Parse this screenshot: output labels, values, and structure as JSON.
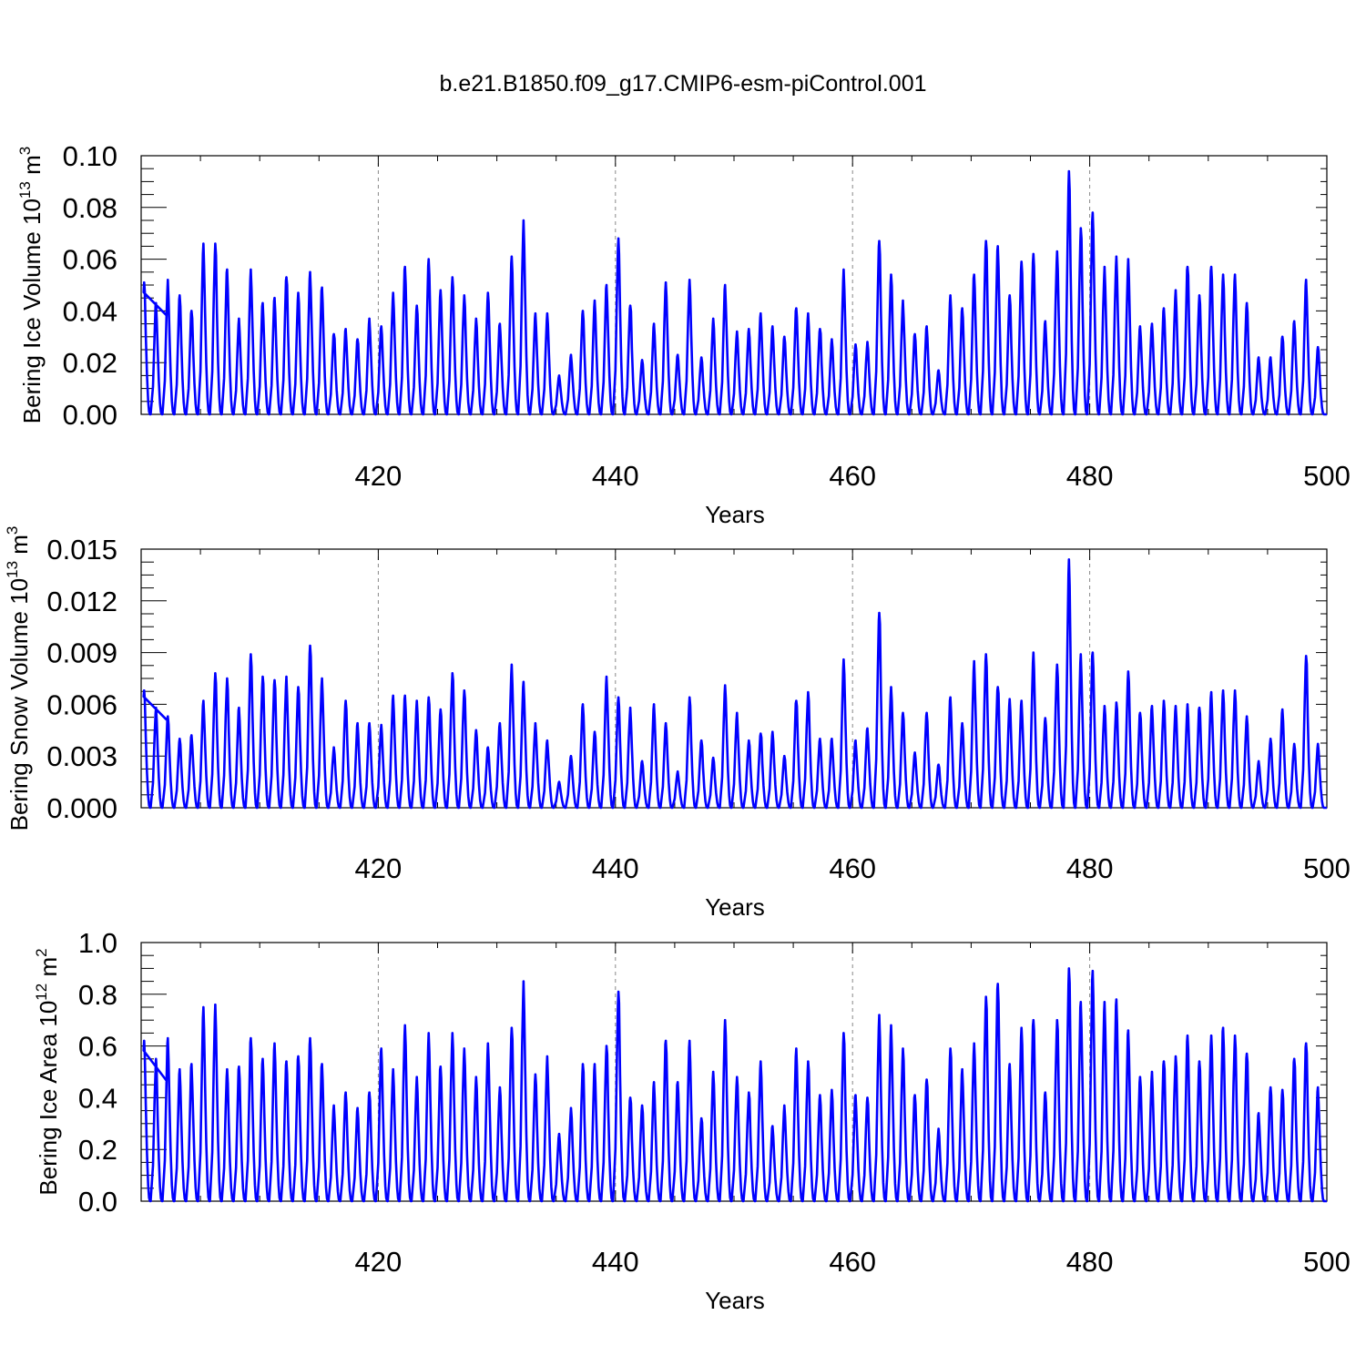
{
  "figure": {
    "title": "b.e21.B1850.f09_g17.CMIP6-esm-piControl.001",
    "line_color": "#0000ff"
  },
  "chart_data": [
    {
      "type": "line",
      "title": "b.e21.B1850.f09_g17.CMIP6-esm-piControl.001",
      "ylabel": {
        "main": "Bering Ice Volume 10",
        "exp": "13",
        "unit": " m",
        "unit_exp": "3"
      },
      "xlabel": "Years",
      "xlim": [
        400,
        500
      ],
      "ylim": [
        0,
        0.1
      ],
      "xticks": [
        420,
        440,
        460,
        480,
        500
      ],
      "yticks": [
        "0.00",
        "0.02",
        "0.04",
        "0.06",
        "0.08",
        "0.10"
      ],
      "ytick_values": [
        0,
        0.02,
        0.04,
        0.06,
        0.08,
        0.1
      ],
      "grid": "dashed vertical at x ticks",
      "series": [
        {
          "name": "Bering Ice Volume",
          "x": [
            400.25,
            401.25,
            402.25,
            403.25,
            404.25,
            405.25,
            406.25,
            407.25,
            408.25,
            409.25,
            410.25,
            411.25,
            412.25,
            413.25,
            414.25,
            415.25,
            416.25,
            417.25,
            418.25,
            419.25,
            420.25,
            421.25,
            422.25,
            423.25,
            424.25,
            425.25,
            426.25,
            427.25,
            428.25,
            429.25,
            430.25,
            431.25,
            432.25,
            433.25,
            434.25,
            435.25,
            436.25,
            437.25,
            438.25,
            439.25,
            440.25,
            441.25,
            442.25,
            443.25,
            444.25,
            445.25,
            446.25,
            447.25,
            448.25,
            449.25,
            450.25,
            451.25,
            452.25,
            453.25,
            454.25,
            455.25,
            456.25,
            457.25,
            458.25,
            459.25,
            460.25,
            461.25,
            462.25,
            463.25,
            464.25,
            465.25,
            466.25,
            467.25,
            468.25,
            469.25,
            470.25,
            471.25,
            472.25,
            473.25,
            474.25,
            475.25,
            476.25,
            477.25,
            478.25,
            479.25,
            480.25,
            481.25,
            482.25,
            483.25,
            484.25,
            485.25,
            486.25,
            487.25,
            488.25,
            489.25,
            490.25,
            491.25,
            492.25,
            493.25,
            494.25,
            495.25,
            496.25,
            497.25,
            498.25,
            499.25
          ],
          "values": [
            0.051,
            0.043,
            0.052,
            0.046,
            0.04,
            0.066,
            0.066,
            0.056,
            0.037,
            0.056,
            0.043,
            0.045,
            0.053,
            0.047,
            0.055,
            0.049,
            0.031,
            0.033,
            0.029,
            0.037,
            0.034,
            0.047,
            0.057,
            0.042,
            0.06,
            0.048,
            0.053,
            0.046,
            0.037,
            0.047,
            0.035,
            0.061,
            0.075,
            0.039,
            0.039,
            0.015,
            0.023,
            0.04,
            0.044,
            0.05,
            0.068,
            0.042,
            0.021,
            0.035,
            0.051,
            0.023,
            0.052,
            0.022,
            0.037,
            0.05,
            0.032,
            0.033,
            0.039,
            0.034,
            0.03,
            0.041,
            0.039,
            0.033,
            0.029,
            0.056,
            0.027,
            0.028,
            0.067,
            0.054,
            0.044,
            0.031,
            0.034,
            0.017,
            0.046,
            0.041,
            0.054,
            0.067,
            0.065,
            0.046,
            0.059,
            0.062,
            0.036,
            0.063,
            0.094,
            0.072,
            0.078,
            0.057,
            0.061,
            0.06,
            0.034,
            0.035,
            0.041,
            0.048,
            0.057,
            0.046,
            0.057,
            0.054,
            0.054,
            0.043,
            0.022,
            0.022,
            0.03,
            0.036,
            0.052,
            0.026
          ]
        }
      ]
    },
    {
      "type": "line",
      "ylabel": {
        "main": "Bering Snow Volume 10",
        "exp": "13",
        "unit": " m",
        "unit_exp": "3"
      },
      "xlabel": "Years",
      "xlim": [
        400,
        500
      ],
      "ylim": [
        0,
        0.015
      ],
      "xticks": [
        420,
        440,
        460,
        480,
        500
      ],
      "yticks": [
        "0.000",
        "0.003",
        "0.006",
        "0.009",
        "0.012",
        "0.015"
      ],
      "ytick_values": [
        0,
        0.003,
        0.006,
        0.009,
        0.012,
        0.015
      ],
      "grid": "dashed vertical at x ticks",
      "series": [
        {
          "name": "Bering Snow Volume",
          "x": [
            400.25,
            401.25,
            402.25,
            403.25,
            404.25,
            405.25,
            406.25,
            407.25,
            408.25,
            409.25,
            410.25,
            411.25,
            412.25,
            413.25,
            414.25,
            415.25,
            416.25,
            417.25,
            418.25,
            419.25,
            420.25,
            421.25,
            422.25,
            423.25,
            424.25,
            425.25,
            426.25,
            427.25,
            428.25,
            429.25,
            430.25,
            431.25,
            432.25,
            433.25,
            434.25,
            435.25,
            436.25,
            437.25,
            438.25,
            439.25,
            440.25,
            441.25,
            442.25,
            443.25,
            444.25,
            445.25,
            446.25,
            447.25,
            448.25,
            449.25,
            450.25,
            451.25,
            452.25,
            453.25,
            454.25,
            455.25,
            456.25,
            457.25,
            458.25,
            459.25,
            460.25,
            461.25,
            462.25,
            463.25,
            464.25,
            465.25,
            466.25,
            467.25,
            468.25,
            469.25,
            470.25,
            471.25,
            472.25,
            473.25,
            474.25,
            475.25,
            476.25,
            477.25,
            478.25,
            479.25,
            480.25,
            481.25,
            482.25,
            483.25,
            484.25,
            485.25,
            486.25,
            487.25,
            488.25,
            489.25,
            490.25,
            491.25,
            492.25,
            493.25,
            494.25,
            495.25,
            496.25,
            497.25,
            498.25,
            499.25
          ],
          "values": [
            0.0068,
            0.0058,
            0.0053,
            0.004,
            0.0042,
            0.0062,
            0.0078,
            0.0075,
            0.0058,
            0.0089,
            0.0076,
            0.0074,
            0.0076,
            0.007,
            0.0094,
            0.0075,
            0.0035,
            0.0062,
            0.0049,
            0.0049,
            0.0048,
            0.0065,
            0.0065,
            0.0062,
            0.0064,
            0.0057,
            0.0078,
            0.0068,
            0.0045,
            0.0035,
            0.0049,
            0.0083,
            0.0073,
            0.0049,
            0.0039,
            0.0015,
            0.003,
            0.006,
            0.0044,
            0.0076,
            0.0064,
            0.0058,
            0.0027,
            0.006,
            0.0049,
            0.0021,
            0.0064,
            0.0039,
            0.0029,
            0.0071,
            0.0055,
            0.0039,
            0.0043,
            0.0044,
            0.003,
            0.0062,
            0.0067,
            0.004,
            0.004,
            0.0086,
            0.0039,
            0.0046,
            0.0113,
            0.007,
            0.0055,
            0.0032,
            0.0055,
            0.0025,
            0.0064,
            0.0049,
            0.0085,
            0.0089,
            0.007,
            0.0063,
            0.0062,
            0.009,
            0.0052,
            0.0083,
            0.0144,
            0.0089,
            0.009,
            0.0059,
            0.0061,
            0.0079,
            0.0055,
            0.0059,
            0.0062,
            0.0059,
            0.006,
            0.0058,
            0.0067,
            0.0068,
            0.0068,
            0.0053,
            0.0027,
            0.004,
            0.0057,
            0.0037,
            0.0088,
            0.0037
          ]
        }
      ]
    },
    {
      "type": "line",
      "ylabel": {
        "main": "Bering Ice Area 10",
        "exp": "12",
        "unit": " m",
        "unit_exp": "2"
      },
      "xlabel": "Years",
      "xlim": [
        400,
        500
      ],
      "ylim": [
        0,
        1.0
      ],
      "xticks": [
        420,
        440,
        460,
        480,
        500
      ],
      "yticks": [
        "0.0",
        "0.2",
        "0.4",
        "0.6",
        "0.8",
        "1.0"
      ],
      "ytick_values": [
        0,
        0.2,
        0.4,
        0.6,
        0.8,
        1.0
      ],
      "grid": "dashed vertical at x ticks",
      "series": [
        {
          "name": "Bering Ice Area",
          "x": [
            400.25,
            401.25,
            402.25,
            403.25,
            404.25,
            405.25,
            406.25,
            407.25,
            408.25,
            409.25,
            410.25,
            411.25,
            412.25,
            413.25,
            414.25,
            415.25,
            416.25,
            417.25,
            418.25,
            419.25,
            420.25,
            421.25,
            422.25,
            423.25,
            424.25,
            425.25,
            426.25,
            427.25,
            428.25,
            429.25,
            430.25,
            431.25,
            432.25,
            433.25,
            434.25,
            435.25,
            436.25,
            437.25,
            438.25,
            439.25,
            440.25,
            441.25,
            442.25,
            443.25,
            444.25,
            445.25,
            446.25,
            447.25,
            448.25,
            449.25,
            450.25,
            451.25,
            452.25,
            453.25,
            454.25,
            455.25,
            456.25,
            457.25,
            458.25,
            459.25,
            460.25,
            461.25,
            462.25,
            463.25,
            464.25,
            465.25,
            466.25,
            467.25,
            468.25,
            469.25,
            470.25,
            471.25,
            472.25,
            473.25,
            474.25,
            475.25,
            476.25,
            477.25,
            478.25,
            479.25,
            480.25,
            481.25,
            482.25,
            483.25,
            484.25,
            485.25,
            486.25,
            487.25,
            488.25,
            489.25,
            490.25,
            491.25,
            492.25,
            493.25,
            494.25,
            495.25,
            496.25,
            497.25,
            498.25,
            499.25
          ],
          "values": [
            0.62,
            0.55,
            0.63,
            0.51,
            0.53,
            0.75,
            0.76,
            0.51,
            0.52,
            0.63,
            0.55,
            0.61,
            0.54,
            0.56,
            0.63,
            0.53,
            0.37,
            0.42,
            0.36,
            0.42,
            0.59,
            0.51,
            0.68,
            0.48,
            0.65,
            0.52,
            0.65,
            0.59,
            0.48,
            0.61,
            0.44,
            0.67,
            0.85,
            0.49,
            0.56,
            0.26,
            0.36,
            0.53,
            0.53,
            0.6,
            0.81,
            0.4,
            0.37,
            0.46,
            0.62,
            0.46,
            0.62,
            0.32,
            0.5,
            0.7,
            0.48,
            0.42,
            0.54,
            0.29,
            0.37,
            0.59,
            0.54,
            0.41,
            0.43,
            0.65,
            0.41,
            0.4,
            0.72,
            0.68,
            0.59,
            0.41,
            0.47,
            0.28,
            0.59,
            0.51,
            0.61,
            0.79,
            0.84,
            0.53,
            0.67,
            0.7,
            0.42,
            0.7,
            0.9,
            0.77,
            0.89,
            0.77,
            0.78,
            0.66,
            0.48,
            0.5,
            0.54,
            0.56,
            0.64,
            0.54,
            0.64,
            0.67,
            0.64,
            0.57,
            0.34,
            0.44,
            0.43,
            0.55,
            0.61,
            0.44
          ]
        }
      ]
    }
  ]
}
